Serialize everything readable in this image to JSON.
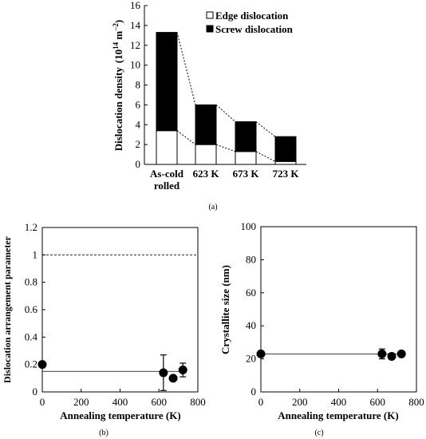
{
  "chart_data": [
    {
      "type": "bar",
      "stacked": true,
      "caption": "(a)",
      "categories": [
        "As-cold rolled",
        "623 K",
        "673 K",
        "723 K"
      ],
      "category_lines": [
        [
          "As-cold",
          "rolled"
        ],
        [
          "623 K"
        ],
        [
          "673 K"
        ],
        [
          "723 K"
        ]
      ],
      "series": [
        {
          "name": "Edge dislocation",
          "values": [
            3.4,
            2.0,
            1.3,
            0.3
          ],
          "color": "#ffffff"
        },
        {
          "name": "Screw dislocation",
          "values": [
            9.9,
            4.0,
            3.0,
            2.5
          ],
          "color": "#000000"
        }
      ],
      "ylabel": "Dislocation density",
      "yunit_base": "(10",
      "yunit_exp": "14",
      "yunit_mid": " m",
      "yunit_exp2": "−2",
      "yunit_end": ")",
      "ylim": [
        0,
        16
      ],
      "yticks": [
        0,
        2,
        4,
        6,
        8,
        10,
        12,
        14,
        16
      ],
      "legend_position": "top-right",
      "connector_lines": true
    },
    {
      "type": "scatter",
      "caption": "(b)",
      "xlabel": "Annealing temperature (K)",
      "ylabel": "Dislocation arrangement parameter",
      "xlim": [
        0,
        800
      ],
      "ylim": [
        0,
        1.2
      ],
      "xticks": [
        0,
        200,
        400,
        600,
        800
      ],
      "yticks": [
        0,
        0.2,
        0.4,
        0.6,
        0.8,
        1,
        1.2
      ],
      "ytick_labels": [
        "0",
        "0.2",
        "0.4",
        "0.6",
        "0.8",
        "1",
        "1.2"
      ],
      "points": [
        {
          "x": 0,
          "y": 0.2,
          "err": 0
        },
        {
          "x": 623,
          "y": 0.14,
          "err": 0.13
        },
        {
          "x": 673,
          "y": 0.1,
          "err": 0
        },
        {
          "x": 723,
          "y": 0.16,
          "err": 0.05
        }
      ],
      "reference_line": {
        "y": 1.0,
        "style": "dashed"
      },
      "level_line": {
        "y": 0.15,
        "from": 0,
        "to": 723
      }
    },
    {
      "type": "scatter",
      "caption": "(c)",
      "xlabel": "Annealing temperature (K)",
      "ylabel": "Crystallite size (nm)",
      "xlim": [
        0,
        800
      ],
      "ylim": [
        0,
        100
      ],
      "xticks": [
        0,
        200,
        400,
        600,
        800
      ],
      "yticks": [
        0,
        20,
        40,
        60,
        80,
        100
      ],
      "ytick_labels": [
        "0",
        "20",
        "40",
        "60",
        "80",
        "100"
      ],
      "points": [
        {
          "x": 0,
          "y": 23,
          "err": 0
        },
        {
          "x": 623,
          "y": 23,
          "err": 3
        },
        {
          "x": 673,
          "y": 21.5,
          "err": 0
        },
        {
          "x": 723,
          "y": 23,
          "err": 0
        }
      ],
      "level_line": {
        "y": 23,
        "from": 0,
        "to": 723
      }
    }
  ]
}
